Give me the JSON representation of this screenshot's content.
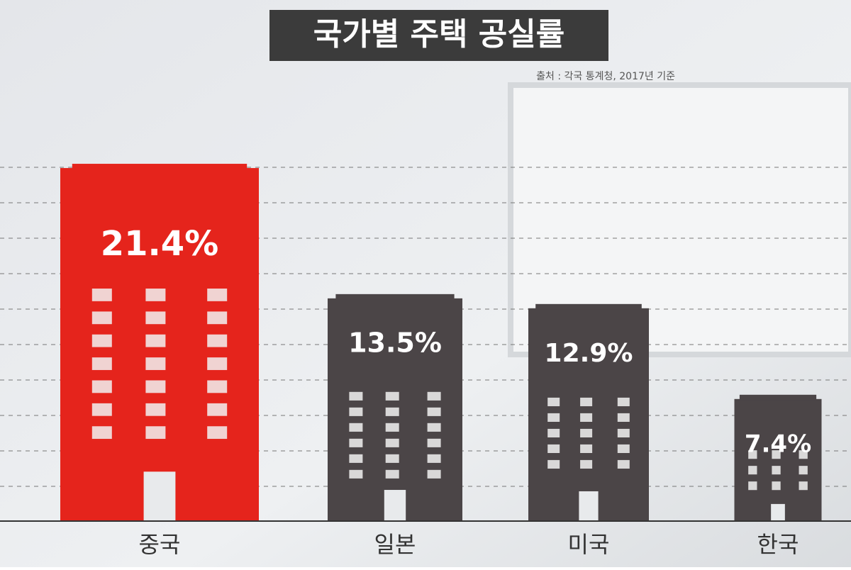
{
  "chart_data": {
    "type": "bar",
    "title": "국가별 주택 공실률",
    "source": "출처 : 각국 통계청, 2017년 기준",
    "categories": [
      "중국",
      "일본",
      "미국",
      "한국"
    ],
    "values": [
      21.4,
      13.5,
      12.9,
      7.4
    ],
    "value_labels": [
      "21.4%",
      "13.5%",
      "12.9%",
      "7.4%"
    ],
    "colors": [
      "#e5241c",
      "#4b4547",
      "#4b4547",
      "#4b4547"
    ],
    "ylim": [
      0,
      26
    ]
  }
}
